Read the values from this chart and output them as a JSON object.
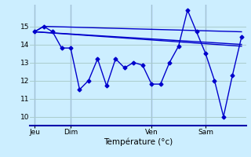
{
  "background_color": "#cceeff",
  "grid_color": "#aacccc",
  "line_color": "#0000cc",
  "xlabel": "Température (°c)",
  "ylim": [
    9.5,
    16.2
  ],
  "yticks": [
    10,
    11,
    12,
    13,
    14,
    15
  ],
  "day_labels": [
    "Jeu",
    "Dim",
    "Ven",
    "Sam"
  ],
  "day_positions": [
    0,
    4,
    13,
    19
  ],
  "line1_x": [
    0,
    1,
    2,
    3,
    4,
    5,
    6,
    7,
    8,
    9,
    10,
    11,
    12,
    13,
    14,
    15,
    16,
    17,
    18,
    19,
    20,
    21,
    22,
    23
  ],
  "line1_y": [
    14.7,
    15.0,
    14.7,
    13.8,
    13.8,
    11.5,
    12.0,
    13.2,
    11.7,
    13.2,
    12.7,
    13.0,
    12.85,
    11.8,
    11.8,
    13.0,
    13.9,
    15.9,
    14.7,
    13.5,
    12.0,
    10.0,
    12.3,
    14.4
  ],
  "line2_x": [
    0,
    1,
    23
  ],
  "line2_y": [
    14.7,
    15.0,
    14.7
  ],
  "line3_x": [
    0,
    23
  ],
  "line3_y": [
    14.7,
    13.9
  ],
  "line4_x": [
    0,
    23
  ],
  "line4_y": [
    14.7,
    14.0
  ],
  "marker_size": 2.5,
  "linewidth": 1.0,
  "xlim": [
    -0.5,
    23.5
  ]
}
